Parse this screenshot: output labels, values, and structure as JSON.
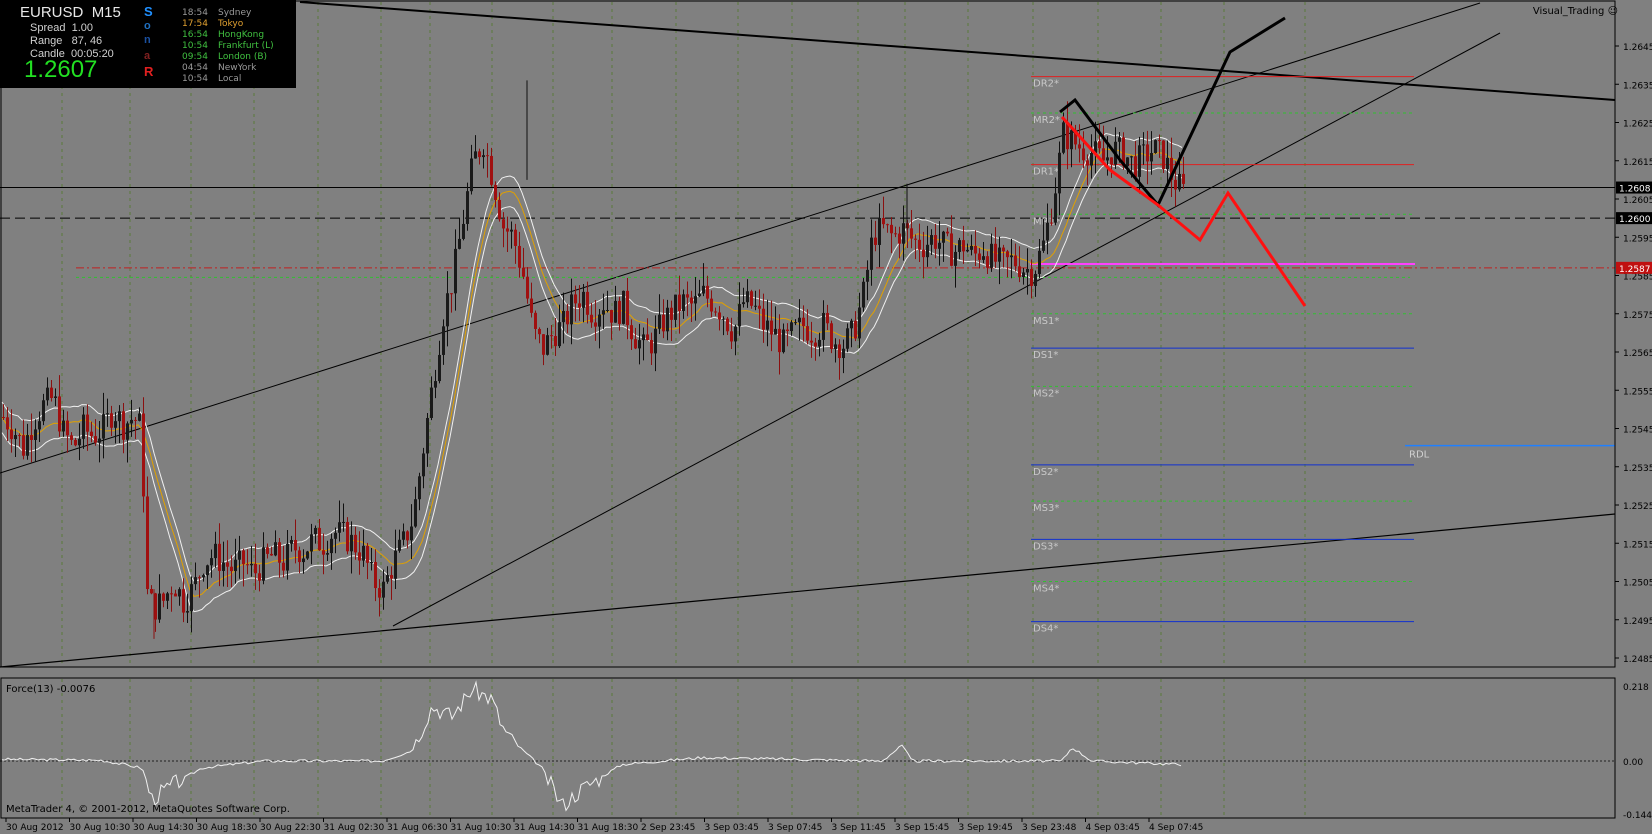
{
  "window": {
    "symbol": "EURUSD",
    "timeframe": "M15",
    "expert_label": "Visual_Trading",
    "copyright": "MetaTrader 4, © 2001-2012, MetaQuotes Software Corp."
  },
  "info_panel": {
    "spread_label": "Spread",
    "spread_value": "1.00",
    "range_label": "Range",
    "range_value": "87, 46",
    "candle_label": "Candle",
    "candle_value": "00:05:20",
    "price": "1.2607",
    "sonar_letters": [
      "S",
      "o",
      "n",
      "a",
      "R"
    ],
    "sessions": [
      {
        "time": "18:54",
        "name": "Sydney",
        "color": "#9a9a9a"
      },
      {
        "time": "17:54",
        "name": "Tokyo",
        "color": "#e0a030"
      },
      {
        "time": "16:54",
        "name": "HongKong",
        "color": "#40c040"
      },
      {
        "time": "10:54",
        "name": "Frankfurt  (L)",
        "color": "#40c040"
      },
      {
        "time": "09:54",
        "name": "London  (B)",
        "color": "#40c040"
      },
      {
        "time": "04:54",
        "name": "NewYork",
        "color": "#9a9a9a"
      },
      {
        "time": "10:54",
        "name": "Local",
        "color": "#9a9a9a"
      }
    ]
  },
  "indicator": {
    "label": "Force(13) -0.0076",
    "ticks": [
      "0.218",
      "0.00",
      "-0.1442"
    ]
  },
  "colors": {
    "background": "#808080",
    "bull_candle": "#1a1a1a",
    "bear_candle": "#a01010",
    "band_outer": "#f0f0f0",
    "band_mid": "#e0a000",
    "pivot_dr": "#e02020",
    "pivot_ds": "#1030d0",
    "pivot_m": "#30c030",
    "pink": "#ff40ff",
    "pattern_black": "#000000",
    "pattern_red": "#ff1010",
    "rdl": "#2080ff"
  },
  "chart_data": {
    "type": "candlestick",
    "symbol": "EURUSD",
    "timeframe": "M15",
    "y_axis": {
      "ticks": [
        "1.2645",
        "1.2635",
        "1.2625",
        "1.2615",
        "1.2605",
        "1.2595",
        "1.2585",
        "1.2575",
        "1.2565",
        "1.2555",
        "1.2545",
        "1.2535",
        "1.2525",
        "1.2515",
        "1.2505",
        "1.2495",
        "1.2485"
      ],
      "range": [
        1.248,
        1.265
      ]
    },
    "price_markers": [
      {
        "value": "1.2608",
        "style": "black"
      },
      {
        "value": "1.2600",
        "style": "black"
      },
      {
        "value": "1.2587",
        "style": "red"
      }
    ],
    "x_axis": {
      "ticks": [
        "30 Aug 2012",
        "30 Aug 10:30",
        "30 Aug 14:30",
        "30 Aug 18:30",
        "30 Aug 22:30",
        "31 Aug 02:30",
        "31 Aug 06:30",
        "31 Aug 10:30",
        "31 Aug 14:30",
        "31 Aug 18:30",
        "2 Sep 23:45",
        "3 Sep 03:45",
        "3 Sep 07:45",
        "3 Sep 11:45",
        "3 Sep 15:45",
        "3 Sep 19:45",
        "3 Sep 23:48",
        "4 Sep 03:45",
        "4 Sep 07:45"
      ]
    },
    "pivot_levels": [
      {
        "label": "DR2*",
        "value": 1.2637,
        "kind": "DR"
      },
      {
        "label": "MR2*",
        "value": 1.26275,
        "kind": "M"
      },
      {
        "label": "DR1*",
        "value": 1.2614,
        "kind": "DR"
      },
      {
        "label": "MR1*",
        "value": 1.2601,
        "kind": "M"
      },
      {
        "label": "MS1*",
        "value": 1.2575,
        "kind": "M"
      },
      {
        "label": "DS1*",
        "value": 1.2566,
        "kind": "DS"
      },
      {
        "label": "MS2*",
        "value": 1.2556,
        "kind": "M"
      },
      {
        "label": "DS2*",
        "value": 1.25355,
        "kind": "DS"
      },
      {
        "label": "MS3*",
        "value": 1.2526,
        "kind": "M"
      },
      {
        "label": "DS3*",
        "value": 1.2516,
        "kind": "DS"
      },
      {
        "label": "MS4*",
        "value": 1.2505,
        "kind": "M"
      },
      {
        "label": "DS4*",
        "value": 1.24945,
        "kind": "DS"
      }
    ],
    "rdl": {
      "label": "RDL",
      "value": 1.254
    },
    "price_path": [
      [
        0,
        1.2548
      ],
      [
        10,
        1.2545
      ],
      [
        20,
        1.254
      ],
      [
        30,
        1.2547
      ],
      [
        40,
        1.2551
      ],
      [
        50,
        1.2553
      ],
      [
        60,
        1.2544
      ],
      [
        70,
        1.254
      ],
      [
        80,
        1.2545
      ],
      [
        90,
        1.2543
      ],
      [
        100,
        1.2545
      ],
      [
        110,
        1.255
      ],
      [
        120,
        1.2546
      ],
      [
        130,
        1.2548
      ],
      [
        138,
        1.2545
      ],
      [
        140,
        1.253
      ],
      [
        142,
        1.2503
      ],
      [
        150,
        1.2498
      ],
      [
        160,
        1.25
      ],
      [
        170,
        1.2505
      ],
      [
        180,
        1.25
      ],
      [
        190,
        1.2503
      ],
      [
        200,
        1.251
      ],
      [
        210,
        1.2512
      ],
      [
        220,
        1.251
      ],
      [
        230,
        1.2508
      ],
      [
        240,
        1.251
      ],
      [
        250,
        1.2507
      ],
      [
        260,
        1.251
      ],
      [
        270,
        1.2512
      ],
      [
        280,
        1.251
      ],
      [
        290,
        1.2514
      ],
      [
        300,
        1.2513
      ],
      [
        310,
        1.2516
      ],
      [
        320,
        1.2515
      ],
      [
        330,
        1.2518
      ],
      [
        340,
        1.2517
      ],
      [
        350,
        1.2515
      ],
      [
        360,
        1.2512
      ],
      [
        370,
        1.2505
      ],
      [
        380,
        1.2503
      ],
      [
        390,
        1.251
      ],
      [
        400,
        1.2515
      ],
      [
        410,
        1.2522
      ],
      [
        420,
        1.254
      ],
      [
        430,
        1.2558
      ],
      [
        440,
        1.2575
      ],
      [
        450,
        1.2585
      ],
      [
        460,
        1.26
      ],
      [
        470,
        1.2615
      ],
      [
        480,
        1.262
      ],
      [
        490,
        1.261
      ],
      [
        500,
        1.2598
      ],
      [
        510,
        1.2595
      ],
      [
        520,
        1.2585
      ],
      [
        530,
        1.257
      ],
      [
        540,
        1.2566
      ],
      [
        550,
        1.257
      ],
      [
        560,
        1.2572
      ],
      [
        570,
        1.2578
      ],
      [
        580,
        1.258
      ],
      [
        590,
        1.2575
      ],
      [
        600,
        1.2578
      ],
      [
        610,
        1.2575
      ],
      [
        620,
        1.2577
      ],
      [
        630,
        1.257
      ],
      [
        640,
        1.2566
      ],
      [
        650,
        1.2568
      ],
      [
        660,
        1.2573
      ],
      [
        670,
        1.2576
      ],
      [
        680,
        1.2578
      ],
      [
        690,
        1.2577
      ],
      [
        700,
        1.258
      ],
      [
        710,
        1.2578
      ],
      [
        720,
        1.2575
      ],
      [
        730,
        1.257
      ],
      [
        740,
        1.2578
      ],
      [
        750,
        1.2577
      ],
      [
        760,
        1.2572
      ],
      [
        770,
        1.257
      ],
      [
        780,
        1.2567
      ],
      [
        790,
        1.257
      ],
      [
        800,
        1.2572
      ],
      [
        810,
        1.257
      ],
      [
        820,
        1.2572
      ],
      [
        830,
        1.2568
      ],
      [
        840,
        1.2567
      ],
      [
        850,
        1.257
      ],
      [
        860,
        1.258
      ],
      [
        870,
        1.2596
      ],
      [
        880,
        1.2597
      ],
      [
        890,
        1.2595
      ],
      [
        900,
        1.2597
      ],
      [
        910,
        1.2594
      ],
      [
        920,
        1.2593
      ],
      [
        930,
        1.2595
      ],
      [
        940,
        1.2593
      ],
      [
        950,
        1.2591
      ],
      [
        960,
        1.2593
      ],
      [
        970,
        1.259
      ],
      [
        980,
        1.2592
      ],
      [
        990,
        1.2589
      ],
      [
        1000,
        1.2588
      ],
      [
        1010,
        1.2589
      ],
      [
        1020,
        1.2587
      ],
      [
        1030,
        1.2586
      ],
      [
        1040,
        1.2593
      ],
      [
        1050,
        1.2605
      ],
      [
        1060,
        1.2622
      ],
      [
        1070,
        1.262
      ],
      [
        1080,
        1.2618
      ],
      [
        1090,
        1.2617
      ],
      [
        1100,
        1.2615
      ],
      [
        1110,
        1.2618
      ],
      [
        1120,
        1.2617
      ],
      [
        1130,
        1.2614
      ],
      [
        1140,
        1.2616
      ],
      [
        1150,
        1.2618
      ],
      [
        1160,
        1.2616
      ],
      [
        1170,
        1.261
      ],
      [
        1180,
        1.2607
      ]
    ],
    "force_path": [
      [
        0,
        0.005
      ],
      [
        100,
        0.002
      ],
      [
        140,
        -0.02
      ],
      [
        150,
        -0.11
      ],
      [
        170,
        -0.07
      ],
      [
        200,
        -0.02
      ],
      [
        260,
        0.0
      ],
      [
        380,
        0.0
      ],
      [
        410,
        0.03
      ],
      [
        430,
        0.16
      ],
      [
        450,
        0.13
      ],
      [
        470,
        0.21
      ],
      [
        490,
        0.18
      ],
      [
        500,
        0.1
      ],
      [
        510,
        0.06
      ],
      [
        540,
        -0.02
      ],
      [
        560,
        -0.13
      ],
      [
        580,
        -0.08
      ],
      [
        620,
        -0.01
      ],
      [
        700,
        0.01
      ],
      [
        880,
        0.0
      ],
      [
        900,
        0.045
      ],
      [
        910,
        0.0
      ],
      [
        1060,
        0.0
      ],
      [
        1070,
        0.04
      ],
      [
        1090,
        0.0
      ],
      [
        1180,
        -0.01
      ]
    ]
  }
}
